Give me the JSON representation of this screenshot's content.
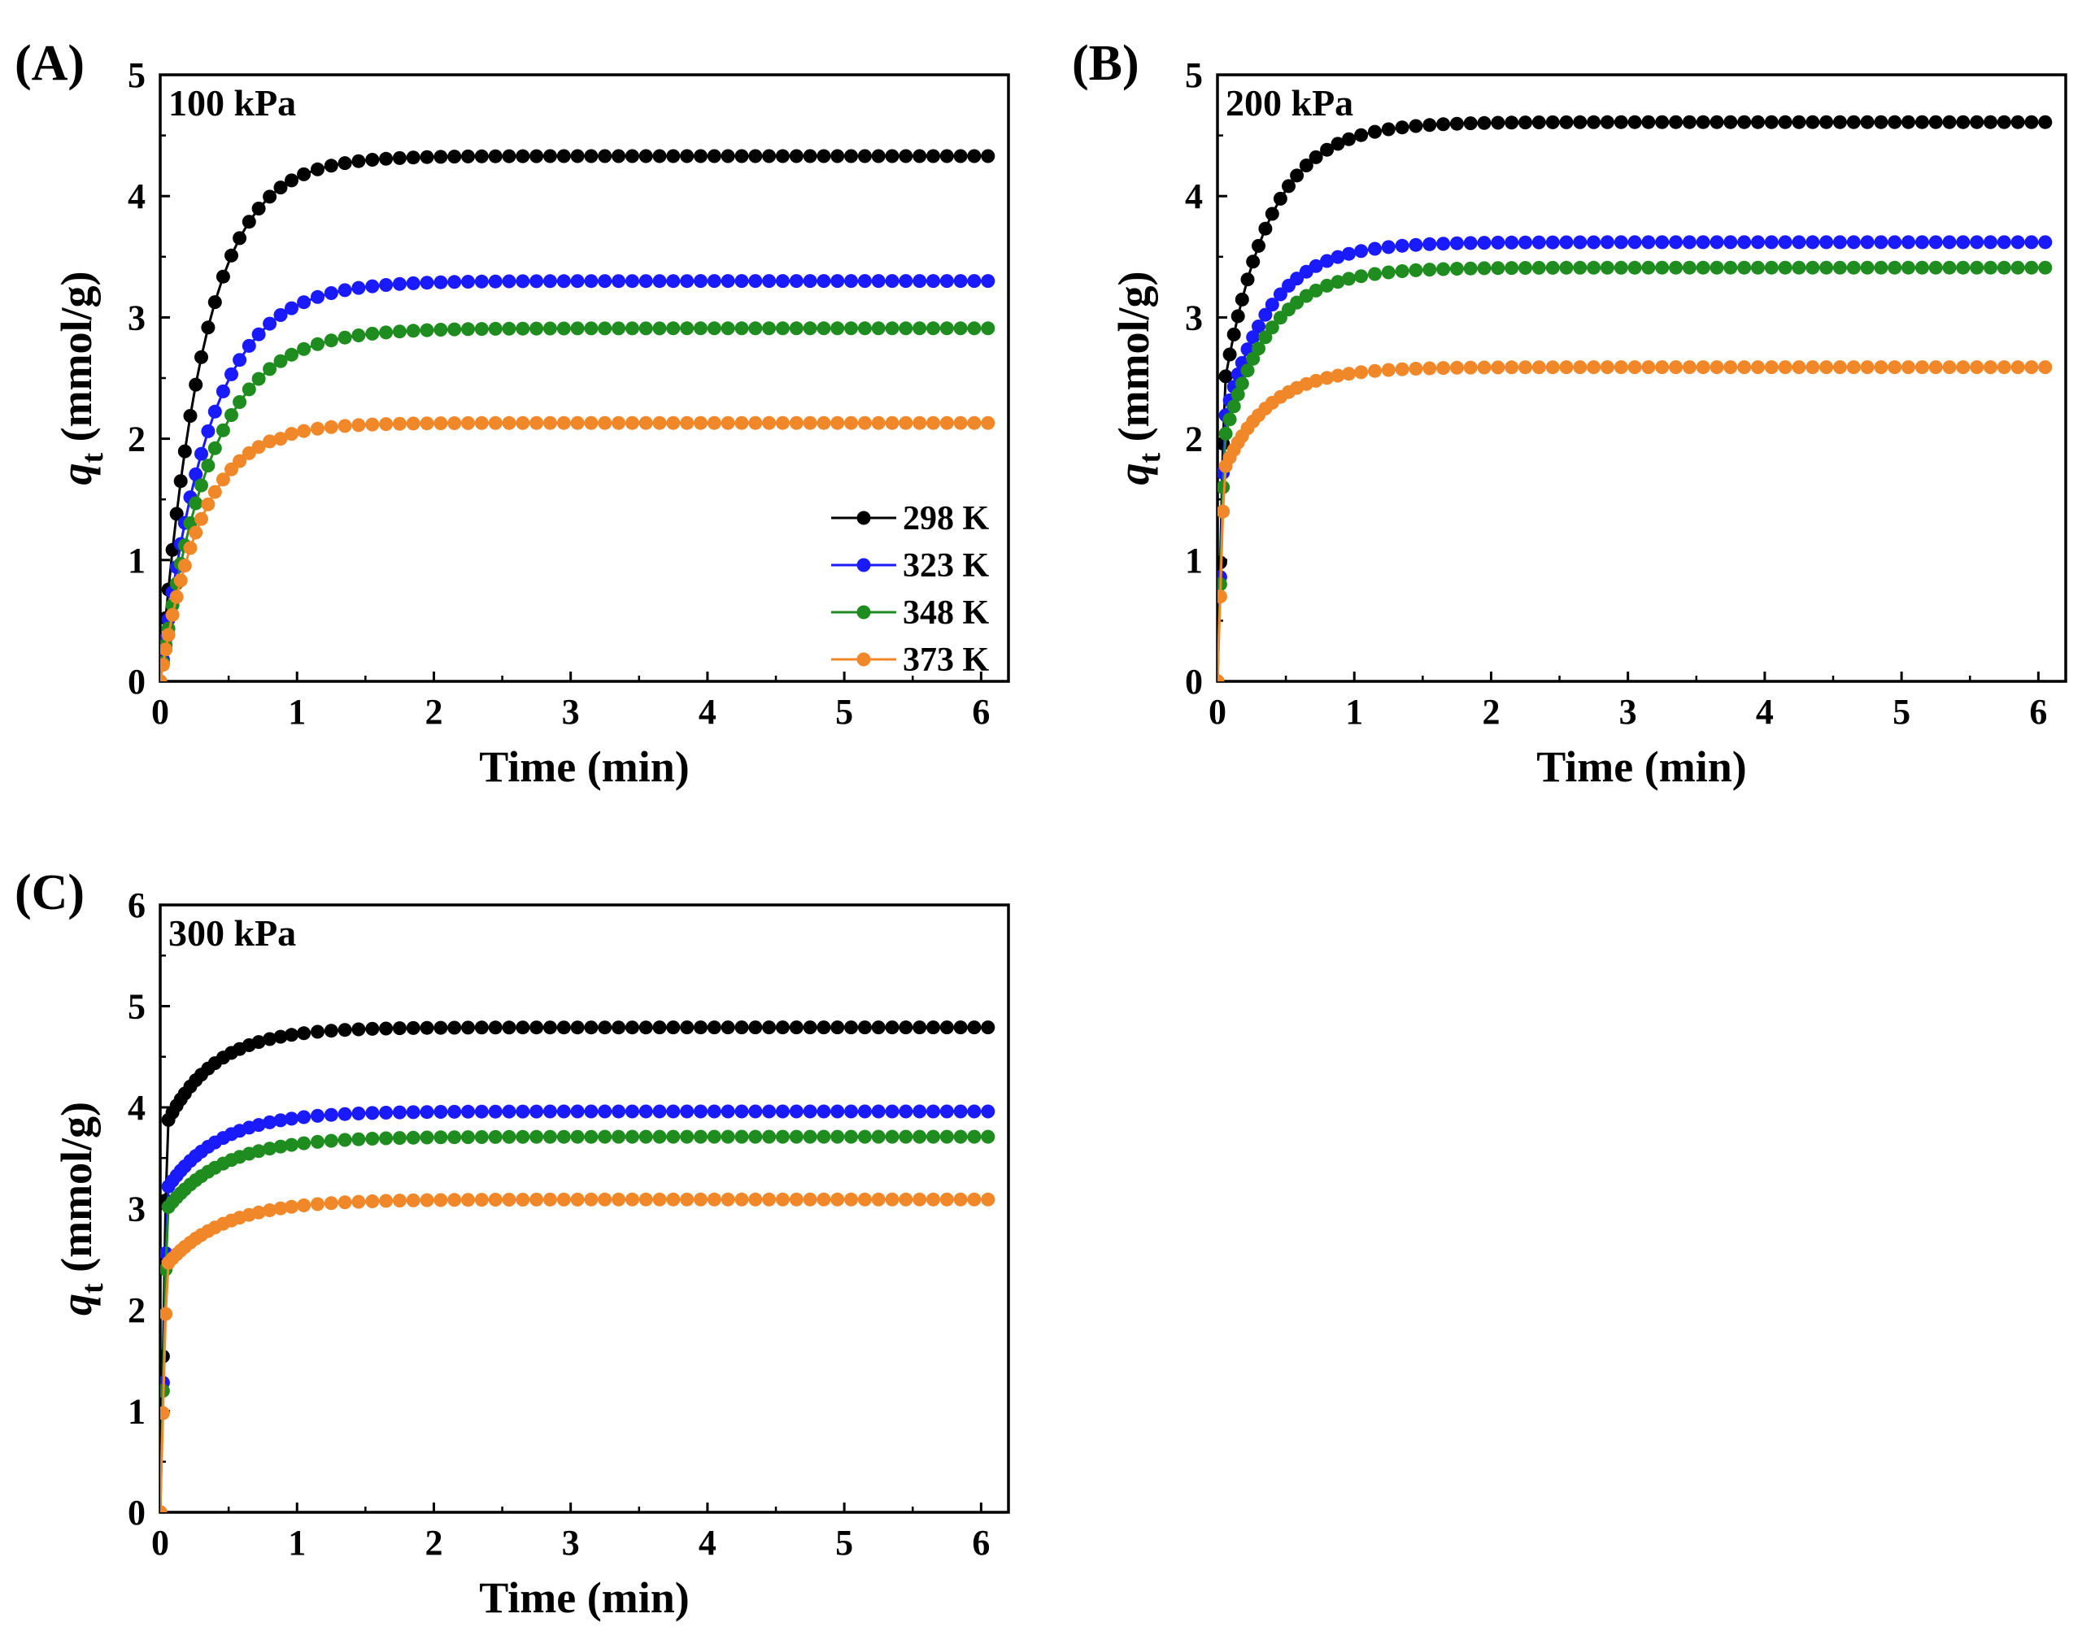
{
  "chart_data": [
    {
      "type": "line",
      "panel_label": "(A)",
      "condition": "100 kPa",
      "xlabel": "Time (min)",
      "ylabel_main": "q",
      "ylabel_sub": "t",
      "ylabel_unit": "(mmol/g)",
      "xlim": [
        0,
        6.2
      ],
      "ylim": [
        0,
        5
      ],
      "xticks": [
        0,
        1,
        2,
        3,
        4,
        5,
        6
      ],
      "yticks": [
        0,
        1,
        2,
        3,
        4,
        5
      ],
      "legend_placement": "bottom-right",
      "series": [
        {
          "name": "298 K",
          "color": "#000000",
          "qe": 4.33,
          "k": 3.2,
          "q0": 0,
          "steps": []
        },
        {
          "name": "323 K",
          "color": "#1a1aff",
          "qe": 3.3,
          "k": 2.8,
          "q0": 0,
          "steps": []
        },
        {
          "name": "348 K",
          "color": "#1e8c1e",
          "qe": 2.91,
          "k": 2.7,
          "q0": 0,
          "steps": []
        },
        {
          "name": "373 K",
          "color": "#f0882a",
          "qe": 2.13,
          "k": 3.3,
          "q0": 0,
          "steps": [
            [
              0.9,
              2.0
            ],
            [
              1.05,
              2.07
            ]
          ]
        }
      ]
    },
    {
      "type": "line",
      "panel_label": "(B)",
      "condition": "200 kPa",
      "xlabel": "Time (min)",
      "ylabel_main": "q",
      "ylabel_sub": "t",
      "ylabel_unit": "(mmol/g)",
      "xlim": [
        0,
        6.2
      ],
      "ylim": [
        0,
        5
      ],
      "xticks": [
        0,
        1,
        2,
        3,
        4,
        5,
        6
      ],
      "yticks": [
        0,
        1,
        2,
        3,
        4,
        5
      ],
      "legend_placement": "none",
      "series": [
        {
          "name": "298 K",
          "color": "#000000",
          "qe": 4.61,
          "k": 3.0,
          "q0": 2.45,
          "steps": []
        },
        {
          "name": "323 K",
          "color": "#1a1aff",
          "qe": 3.62,
          "k": 3.0,
          "q0": 2.15,
          "steps": []
        },
        {
          "name": "348 K",
          "color": "#1e8c1e",
          "qe": 3.41,
          "k": 3.0,
          "q0": 2.0,
          "steps": []
        },
        {
          "name": "373 K",
          "color": "#f0882a",
          "qe": 2.59,
          "k": 3.0,
          "q0": 1.75,
          "steps": []
        }
      ]
    },
    {
      "type": "line",
      "panel_label": "(C)",
      "condition": "300 kPa",
      "xlabel": "Time (min)",
      "ylabel_main": "q",
      "ylabel_sub": "t",
      "ylabel_unit": "(mmol/g)",
      "xlim": [
        0,
        6.2
      ],
      "ylim": [
        0,
        6
      ],
      "xticks": [
        0,
        1,
        2,
        3,
        4,
        5,
        6
      ],
      "yticks": [
        0,
        1,
        2,
        3,
        4,
        5,
        6
      ],
      "legend_placement": "none",
      "series": [
        {
          "name": "298 K",
          "color": "#000000",
          "qe": 4.79,
          "k": 2.8,
          "q0": 3.85,
          "steps": []
        },
        {
          "name": "323 K",
          "color": "#1a1aff",
          "qe": 3.96,
          "k": 2.6,
          "q0": 3.2,
          "steps": []
        },
        {
          "name": "348 K",
          "color": "#1e8c1e",
          "qe": 3.71,
          "k": 2.4,
          "q0": 3.0,
          "steps": []
        },
        {
          "name": "373 K",
          "color": "#f0882a",
          "qe": 3.09,
          "k": 2.4,
          "q0": 2.45,
          "steps": []
        }
      ]
    }
  ]
}
